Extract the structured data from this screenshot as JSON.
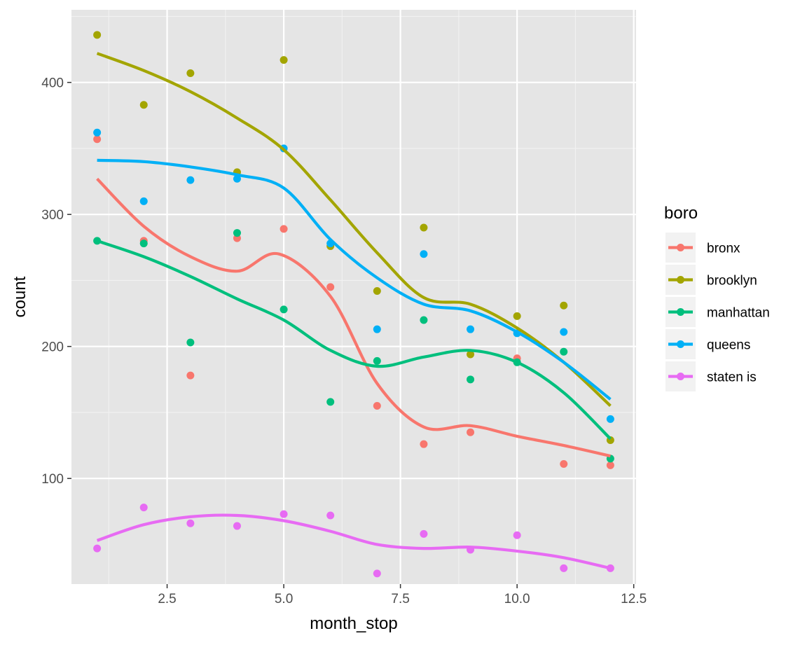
{
  "chart_data": {
    "type": "scatter",
    "title": "",
    "xlabel": "month_stop",
    "ylabel": "count",
    "xlim": [
      0.45,
      12.55
    ],
    "ylim": [
      20,
      455
    ],
    "x_ticks": [
      2.5,
      5.0,
      7.5,
      10.0,
      12.5
    ],
    "x_tick_labels": [
      "2.5",
      "5.0",
      "7.5",
      "10.0",
      "12.5"
    ],
    "y_ticks": [
      100,
      200,
      300,
      400
    ],
    "y_tick_labels": [
      "100",
      "200",
      "300",
      "400"
    ],
    "grid": true,
    "legend_title": "boro",
    "legend_position": "right",
    "panel_background": "#e5e5e5",
    "overlay": "smoothed trend line per series",
    "x": [
      1,
      2,
      3,
      4,
      5,
      6,
      7,
      8,
      9,
      10,
      11,
      12
    ],
    "series": [
      {
        "name": "bronx",
        "color": "#F8766D",
        "values": [
          357,
          280,
          178,
          282,
          289,
          245,
          155,
          126,
          135,
          191,
          111,
          110
        ],
        "smooth": [
          [
            1,
            327
          ],
          [
            2,
            291
          ],
          [
            3,
            268
          ],
          [
            4,
            257
          ],
          [
            4.9,
            270
          ],
          [
            6,
            238
          ],
          [
            7,
            172
          ],
          [
            8,
            139
          ],
          [
            9,
            140
          ],
          [
            10,
            132
          ],
          [
            11,
            125
          ],
          [
            12,
            117
          ]
        ]
      },
      {
        "name": "brooklyn",
        "color": "#A3A500",
        "values": [
          436,
          383,
          407,
          332,
          417,
          276,
          242,
          290,
          194,
          223,
          231,
          129
        ],
        "smooth": [
          [
            1,
            422
          ],
          [
            2,
            409
          ],
          [
            3,
            393
          ],
          [
            4,
            373
          ],
          [
            5,
            349
          ],
          [
            6,
            311
          ],
          [
            7,
            271
          ],
          [
            8,
            237
          ],
          [
            9,
            232
          ],
          [
            10,
            214
          ],
          [
            11,
            188
          ],
          [
            12,
            155
          ]
        ]
      },
      {
        "name": "manhattan",
        "color": "#00BF7D",
        "values": [
          280,
          278,
          203,
          286,
          228,
          158,
          189,
          220,
          175,
          188,
          196,
          115
        ],
        "smooth": [
          [
            1,
            280
          ],
          [
            2,
            268
          ],
          [
            3,
            253
          ],
          [
            4,
            236
          ],
          [
            5,
            220
          ],
          [
            6,
            197
          ],
          [
            7,
            185
          ],
          [
            8,
            192
          ],
          [
            9,
            197
          ],
          [
            10,
            188
          ],
          [
            11,
            165
          ],
          [
            12,
            130
          ]
        ]
      },
      {
        "name": "queens",
        "color": "#00B0F6",
        "values": [
          362,
          310,
          326,
          327,
          350,
          278,
          213,
          270,
          213,
          210,
          211,
          145
        ],
        "smooth": [
          [
            1,
            341
          ],
          [
            2,
            340
          ],
          [
            3,
            336
          ],
          [
            4,
            330
          ],
          [
            5,
            320
          ],
          [
            6,
            281
          ],
          [
            7,
            252
          ],
          [
            8,
            232
          ],
          [
            9,
            227
          ],
          [
            10,
            211
          ],
          [
            11,
            188
          ],
          [
            12,
            160
          ]
        ]
      },
      {
        "name": "staten is",
        "color": "#E76BF3",
        "values": [
          47,
          78,
          66,
          64,
          73,
          72,
          28,
          58,
          46,
          57,
          32,
          32
        ],
        "smooth": [
          [
            1,
            53
          ],
          [
            2,
            65
          ],
          [
            3,
            71
          ],
          [
            4,
            72
          ],
          [
            5,
            68
          ],
          [
            6,
            60
          ],
          [
            7,
            50
          ],
          [
            8,
            47
          ],
          [
            9,
            48
          ],
          [
            10,
            45
          ],
          [
            11,
            40
          ],
          [
            12,
            32
          ]
        ]
      }
    ]
  }
}
